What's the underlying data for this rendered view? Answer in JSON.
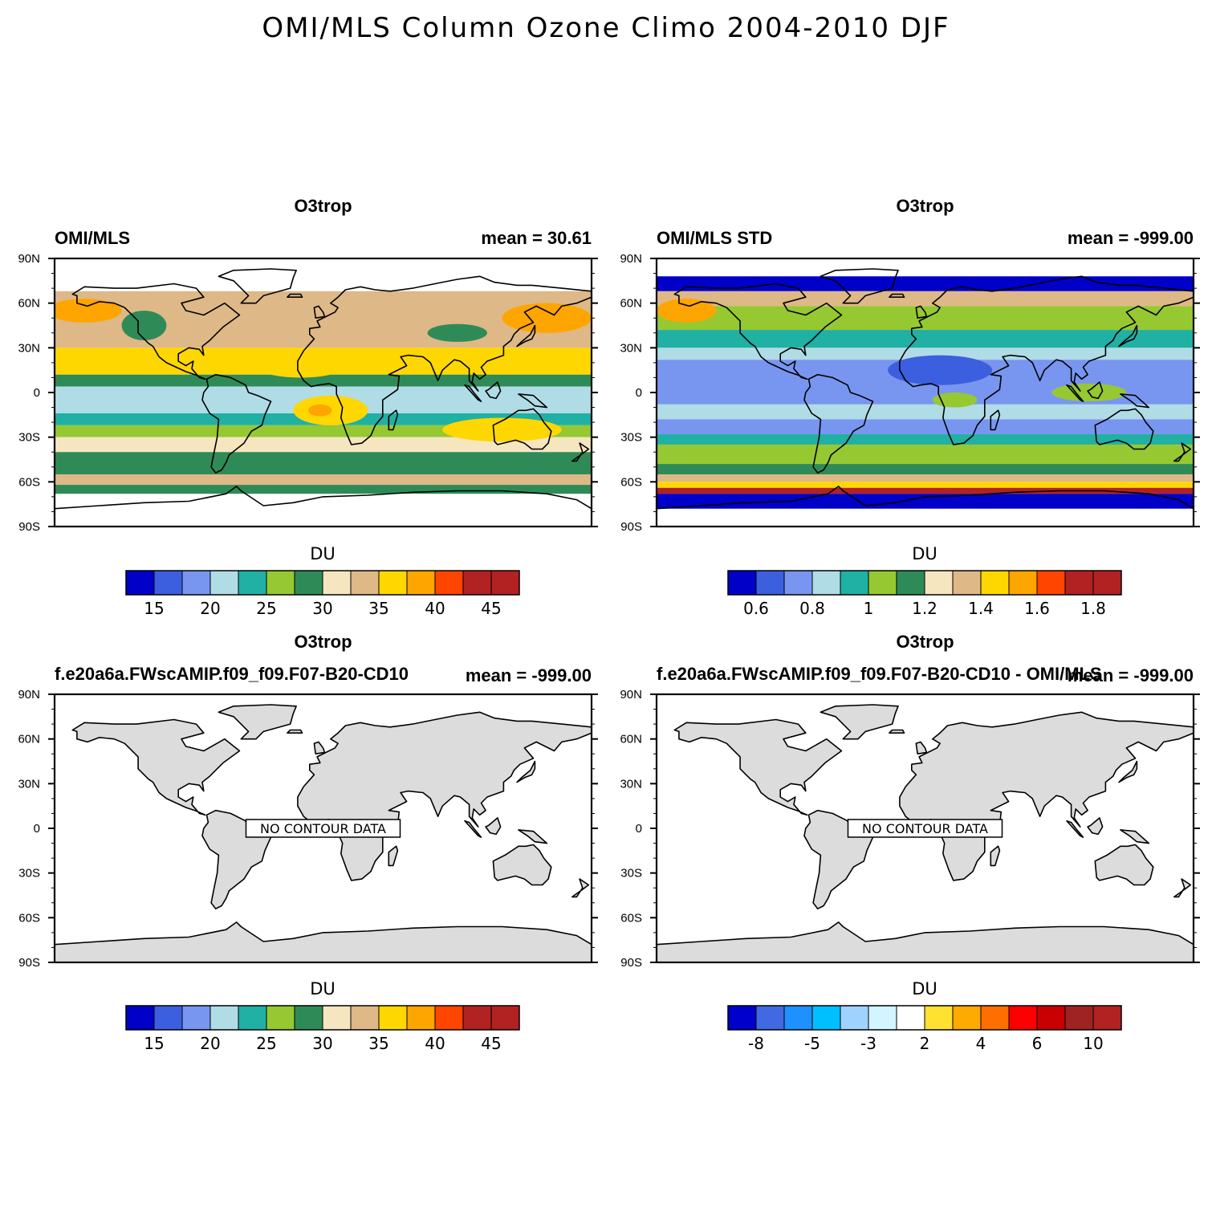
{
  "figure_title": "OMI/MLS Column Ozone Climo 2004-2010 DJF",
  "lat_labels": [
    "90N",
    "60N",
    "30N",
    "0",
    "30S",
    "60S",
    "90S"
  ],
  "panels": [
    {
      "title": "O3trop",
      "left_label": "OMI/MLS",
      "right_label": "mean =  30.61",
      "units": "DU",
      "has_data": true,
      "palette": [
        "#0000c8",
        "#3c5fe0",
        "#7896f0",
        "#b0dce6",
        "#20b0a4",
        "#96c832",
        "#2e8b57",
        "#f5e6c0",
        "#deb887",
        "#ffd700",
        "#ffa500",
        "#ff4500",
        "#b22222",
        "#b22222"
      ],
      "colorbar_labels": [
        "15",
        "20",
        "25",
        "30",
        "35",
        "40",
        "45"
      ],
      "bands": [
        {
          "lat": [
            55,
            68
          ],
          "color": "#deb887"
        },
        {
          "lat": [
            30,
            55
          ],
          "color": "#deb887"
        },
        {
          "lat": [
            12,
            30
          ],
          "color": "#ffd700"
        },
        {
          "lat": [
            4,
            12
          ],
          "color": "#2e8b57"
        },
        {
          "lat": [
            -14,
            4
          ],
          "color": "#b0dce6"
        },
        {
          "lat": [
            -22,
            -14
          ],
          "color": "#20b0a4"
        },
        {
          "lat": [
            -30,
            -22
          ],
          "color": "#96c832"
        },
        {
          "lat": [
            -40,
            -30
          ],
          "color": "#f5e6c0"
        },
        {
          "lat": [
            -55,
            -40
          ],
          "color": "#2e8b57"
        },
        {
          "lat": [
            -62,
            -55
          ],
          "color": "#deb887"
        },
        {
          "lat": [
            -68,
            -62
          ],
          "color": "#2e8b57"
        }
      ],
      "blobs": [
        {
          "lon": -160,
          "lat": 55,
          "rx": 25,
          "ry": 8,
          "color": "#ffa500"
        },
        {
          "lon": 150,
          "lat": 50,
          "rx": 30,
          "ry": 10,
          "color": "#ffa500"
        },
        {
          "lon": -15,
          "lat": 18,
          "rx": 30,
          "ry": 8,
          "color": "#ffd700"
        },
        {
          "lon": 5,
          "lat": -12,
          "rx": 25,
          "ry": 10,
          "color": "#ffd700"
        },
        {
          "lon": -2,
          "lat": -12,
          "rx": 8,
          "ry": 4,
          "color": "#ffa500"
        },
        {
          "lon": 120,
          "lat": -25,
          "rx": 40,
          "ry": 8,
          "color": "#ffd700"
        },
        {
          "lon": 90,
          "lat": 40,
          "rx": 20,
          "ry": 6,
          "color": "#2e8b57"
        },
        {
          "lon": -120,
          "lat": 45,
          "rx": 15,
          "ry": 10,
          "color": "#2e8b57"
        }
      ]
    },
    {
      "title": "O3trop",
      "left_label": "OMI/MLS STD",
      "right_label": "mean = -999.00",
      "units": "DU",
      "has_data": true,
      "palette": [
        "#0000c8",
        "#3c5fe0",
        "#7896f0",
        "#b0dce6",
        "#20b0a4",
        "#96c832",
        "#2e8b57",
        "#f5e6c0",
        "#deb887",
        "#ffd700",
        "#ffa500",
        "#ff4500",
        "#b22222",
        "#b22222"
      ],
      "colorbar_labels": [
        "0.6",
        "0.8",
        "1",
        "1.2",
        "1.4",
        "1.6",
        "1.8"
      ],
      "bands": [
        {
          "lat": [
            68,
            78
          ],
          "color": "#0000c8"
        },
        {
          "lat": [
            58,
            68
          ],
          "color": "#deb887"
        },
        {
          "lat": [
            42,
            58
          ],
          "color": "#96c832"
        },
        {
          "lat": [
            30,
            42
          ],
          "color": "#20b0a4"
        },
        {
          "lat": [
            22,
            30
          ],
          "color": "#b0dce6"
        },
        {
          "lat": [
            -8,
            22
          ],
          "color": "#7896f0"
        },
        {
          "lat": [
            -18,
            -8
          ],
          "color": "#b0dce6"
        },
        {
          "lat": [
            -28,
            -18
          ],
          "color": "#7896f0"
        },
        {
          "lat": [
            -35,
            -28
          ],
          "color": "#20b0a4"
        },
        {
          "lat": [
            -48,
            -35
          ],
          "color": "#96c832"
        },
        {
          "lat": [
            -55,
            -48
          ],
          "color": "#2e8b57"
        },
        {
          "lat": [
            -60,
            -55
          ],
          "color": "#deb887"
        },
        {
          "lat": [
            -64,
            -60
          ],
          "color": "#ffd700"
        },
        {
          "lat": [
            -68,
            -64
          ],
          "color": "#b22222"
        },
        {
          "lat": [
            -78,
            -68
          ],
          "color": "#0000c8"
        }
      ],
      "blobs": [
        {
          "lon": 10,
          "lat": 15,
          "rx": 35,
          "ry": 10,
          "color": "#3c5fe0"
        },
        {
          "lon": -160,
          "lat": 55,
          "rx": 20,
          "ry": 8,
          "color": "#ffa500"
        },
        {
          "lon": 20,
          "lat": -5,
          "rx": 15,
          "ry": 5,
          "color": "#96c832"
        },
        {
          "lon": 110,
          "lat": 0,
          "rx": 25,
          "ry": 6,
          "color": "#96c832"
        }
      ]
    },
    {
      "title": "O3trop",
      "left_label": "f.e20a6a.FWscAMIP.f09_f09.F07-B20-CD10",
      "right_label": "mean = -999.00",
      "units": "DU",
      "has_data": false,
      "no_data_text": "NO CONTOUR DATA",
      "palette": [
        "#0000c8",
        "#3c5fe0",
        "#7896f0",
        "#b0dce6",
        "#20b0a4",
        "#96c832",
        "#2e8b57",
        "#f5e6c0",
        "#deb887",
        "#ffd700",
        "#ffa500",
        "#ff4500",
        "#b22222",
        "#b22222"
      ],
      "colorbar_labels": [
        "15",
        "20",
        "25",
        "30",
        "35",
        "40",
        "45"
      ]
    },
    {
      "title": "O3trop",
      "left_label": "f.e20a6a.FWscAMIP.f09_f09.F07-B20-CD10 - OMI/MLS",
      "right_label": "mean = -999.00",
      "units": "DU",
      "has_data": false,
      "no_data_text": "NO CONTOUR DATA",
      "palette": [
        "#0000cd",
        "#4169e1",
        "#1e90ff",
        "#00bfff",
        "#a0d2ff",
        "#d2f5ff",
        "#ffffff",
        "#ffe132",
        "#ffaa00",
        "#ff6e00",
        "#ff0000",
        "#c80000",
        "#a02323",
        "#b22222"
      ],
      "colorbar_labels": [
        "-8",
        "-5",
        "-3",
        "2",
        "4",
        "6",
        "10"
      ]
    }
  ]
}
